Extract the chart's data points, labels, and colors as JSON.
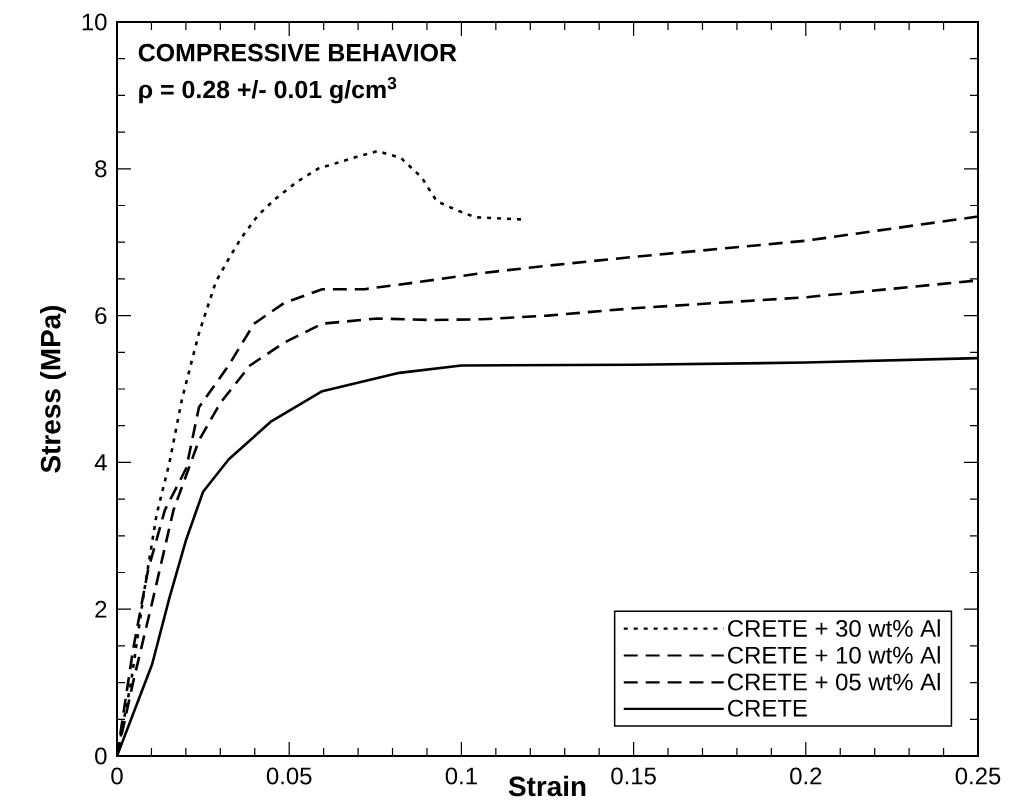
{
  "chart_data": {
    "type": "line",
    "title": "COMPRESSIVE BEHAVIOR",
    "annotations": [
      "ρ = 0.28 +/- 0.01 g/cm$^{3}$"
    ],
    "xlabel": "Strain",
    "ylabel": "Stress (MPa)",
    "xlim": [
      0,
      0.25
    ],
    "ylim": [
      0,
      10
    ],
    "xticks": [
      0,
      0.05,
      0.1,
      0.15,
      0.2,
      0.25
    ],
    "yticks": [
      0,
      2,
      4,
      6,
      8,
      10
    ],
    "grid": false,
    "legend": "bottom right",
    "marker": "none",
    "series": [
      {
        "name": "CRETE + 30 wt% Al",
        "color": "#000000",
        "line_style": "dotted",
        "x": [
          0,
          0.0041,
          0.0078,
          0.0115,
          0.0152,
          0.0189,
          0.0238,
          0.0287,
          0.0324,
          0.0361,
          0.041,
          0.046,
          0.0522,
          0.0583,
          0.0694,
          0.0756,
          0.0824,
          0.0885,
          0.0928,
          0.0984,
          0.104,
          0.1175
        ],
        "values": [
          0,
          1.01,
          2.22,
          3.29,
          3.99,
          4.87,
          5.76,
          6.46,
          6.77,
          7.06,
          7.37,
          7.59,
          7.82,
          8.0,
          8.16,
          8.24,
          8.15,
          7.88,
          7.56,
          7.44,
          7.34,
          7.31
        ]
      },
      {
        "name": "CRETE + 10 wt% Al",
        "color": "#000000",
        "line_style": "dashed",
        "x": [
          0,
          0.0047,
          0.009,
          0.0139,
          0.0201,
          0.0238,
          0.0324,
          0.0398,
          0.0485,
          0.0596,
          0.0719,
          0.088,
          0.106,
          0.125,
          0.15,
          0.2,
          0.25
        ],
        "values": [
          0,
          1.46,
          2.53,
          3.35,
          3.92,
          4.75,
          5.32,
          5.89,
          6.17,
          6.36,
          6.36,
          6.46,
          6.58,
          6.68,
          6.8,
          7.02,
          7.35
        ]
      },
      {
        "name": "CRETE + 05 wt% Al",
        "color": "#000000",
        "line_style": "dashed",
        "x": [
          0,
          0.0047,
          0.0102,
          0.0164,
          0.0238,
          0.03,
          0.0386,
          0.0485,
          0.0596,
          0.0756,
          0.0916,
          0.106,
          0.125,
          0.15,
          0.2,
          0.25
        ],
        "values": [
          0,
          1.01,
          2.09,
          3.35,
          4.3,
          4.81,
          5.32,
          5.63,
          5.89,
          5.96,
          5.94,
          5.95,
          6.0,
          6.1,
          6.25,
          6.48
        ]
      },
      {
        "name": "CRETE",
        "color": "#000000",
        "line_style": "solid",
        "x": [
          0,
          0.0102,
          0.0152,
          0.0201,
          0.025,
          0.0324,
          0.0448,
          0.0596,
          0.082,
          0.1,
          0.15,
          0.2,
          0.25
        ],
        "values": [
          0,
          1.25,
          2.15,
          2.95,
          3.6,
          4.04,
          4.56,
          4.97,
          5.22,
          5.32,
          5.33,
          5.36,
          5.42
        ]
      }
    ]
  }
}
